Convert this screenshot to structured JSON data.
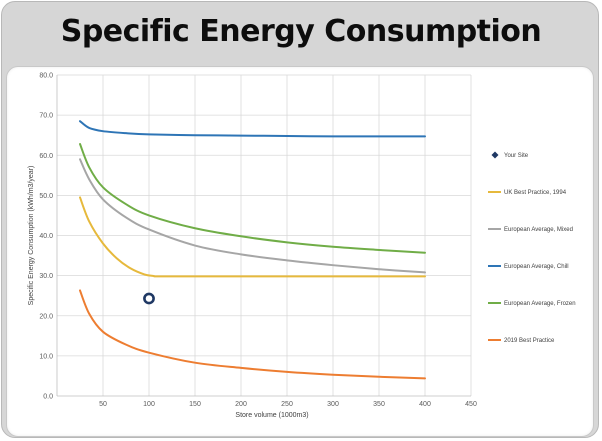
{
  "title": "Specific Energy Consumption",
  "chart_data": {
    "type": "line",
    "xlabel": "Store volume (1000m3)",
    "ylabel": "Specific Energy Consumption (kWh/m3/year)",
    "xlim": [
      0,
      450
    ],
    "ylim": [
      0,
      80
    ],
    "x_ticks": [
      "50",
      "100",
      "150",
      "200",
      "250",
      "300",
      "350",
      "400",
      "450"
    ],
    "y_ticks": [
      "0.0",
      "10.0",
      "20.0",
      "30.0",
      "40.0",
      "50.0",
      "60.0",
      "70.0",
      "80.0"
    ],
    "grid": true,
    "legend_position": "right",
    "series": [
      {
        "name": "Your Site",
        "kind": "scatter",
        "color": "#1f3864",
        "x": [
          100
        ],
        "y": [
          24.3
        ]
      },
      {
        "name": "UK Best Practice, 1994",
        "kind": "line",
        "color": "#e6b93c",
        "x": [
          25,
          35,
          50,
          65,
          80,
          95,
          105,
          110,
          150,
          200,
          250,
          300,
          350,
          400
        ],
        "y": [
          49.5,
          43.5,
          38.0,
          34.3,
          31.8,
          30.3,
          29.9,
          29.8,
          29.8,
          29.8,
          29.8,
          29.8,
          29.8,
          29.8
        ]
      },
      {
        "name": "European Average, Mixed",
        "kind": "line",
        "color": "#a6a6a6",
        "x": [
          25,
          35,
          50,
          75,
          100,
          150,
          200,
          250,
          300,
          350,
          400
        ],
        "y": [
          59.0,
          54.0,
          49.0,
          44.5,
          41.5,
          37.5,
          35.3,
          33.8,
          32.6,
          31.6,
          30.8
        ]
      },
      {
        "name": "European Average, Chill",
        "kind": "line",
        "color": "#2e75b6",
        "x": [
          25,
          35,
          50,
          75,
          100,
          150,
          200,
          250,
          300,
          350,
          400
        ],
        "y": [
          68.5,
          66.8,
          66.0,
          65.5,
          65.2,
          65.0,
          64.9,
          64.8,
          64.7,
          64.7,
          64.7
        ]
      },
      {
        "name": "European Average, Frozen",
        "kind": "line",
        "color": "#70ad47",
        "x": [
          25,
          35,
          50,
          75,
          100,
          150,
          200,
          250,
          300,
          350,
          400
        ],
        "y": [
          62.8,
          57.0,
          52.0,
          47.8,
          45.0,
          41.8,
          39.8,
          38.3,
          37.2,
          36.4,
          35.7
        ]
      },
      {
        "name": "2019 Best Practice",
        "kind": "line",
        "color": "#ed7d31",
        "x": [
          25,
          35,
          50,
          75,
          100,
          150,
          200,
          250,
          300,
          350,
          400
        ],
        "y": [
          26.3,
          20.5,
          16.0,
          12.8,
          10.8,
          8.3,
          7.0,
          6.0,
          5.3,
          4.8,
          4.4
        ]
      }
    ]
  }
}
